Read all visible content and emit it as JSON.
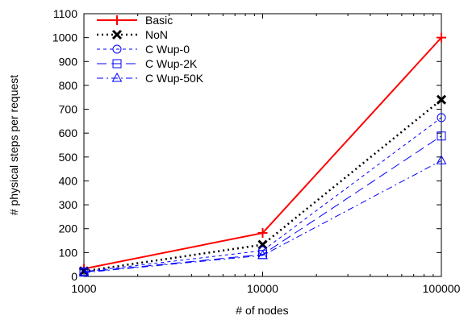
{
  "chart_data": {
    "type": "line",
    "title": "",
    "xlabel": "# of nodes",
    "ylabel": "# physical steps per request",
    "xscale": "log",
    "x": [
      1000,
      10000,
      100000
    ],
    "xticks": [
      "1000",
      "10000",
      "100000"
    ],
    "ylim": [
      0,
      1100
    ],
    "yticks": [
      "0",
      "100",
      "200",
      "300",
      "400",
      "500",
      "600",
      "700",
      "800",
      "900",
      "1000",
      "1100"
    ],
    "grid": false,
    "legend_position": "top-left",
    "series": [
      {
        "name": "Basic",
        "values": [
          32,
          182,
          1000
        ],
        "color": "#ff0000",
        "dash": "solid",
        "marker": "plus"
      },
      {
        "name": "NoN",
        "values": [
          22,
          133,
          740
        ],
        "color": "#000000",
        "dash": "dotted",
        "marker": "cross"
      },
      {
        "name": "C Wup-0",
        "values": [
          20,
          108,
          665
        ],
        "color": "#0000ff",
        "dash": "short-dash",
        "marker": "circle"
      },
      {
        "name": "C Wup-2K",
        "values": [
          18,
          92,
          588
        ],
        "color": "#0000ff",
        "dash": "long-dash",
        "marker": "square"
      },
      {
        "name": "C Wup-50K",
        "values": [
          16,
          88,
          485
        ],
        "color": "#0000ff",
        "dash": "dash-dot",
        "marker": "triangle"
      }
    ]
  }
}
